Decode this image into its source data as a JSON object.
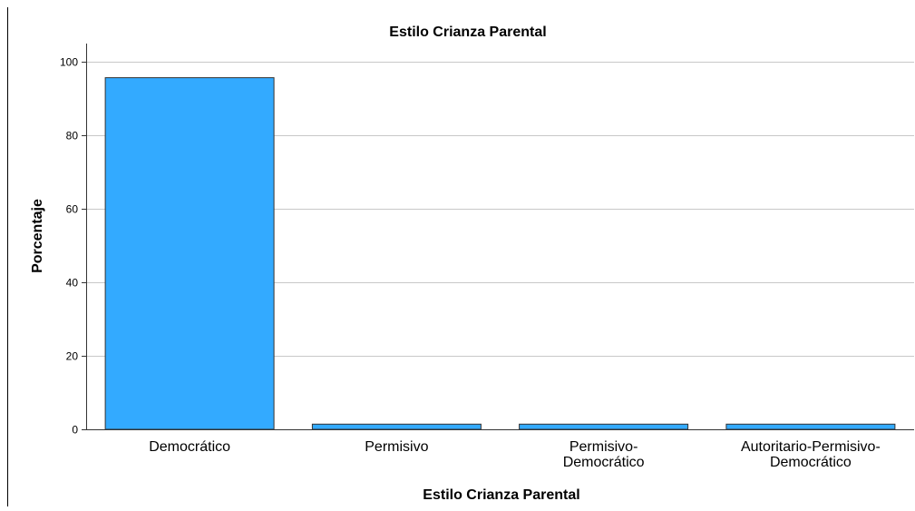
{
  "chart_data": {
    "type": "bar",
    "title": "Estilo Crianza Parental",
    "xlabel": "Estilo Crianza Parental",
    "ylabel": "Porcentaje",
    "categories": [
      [
        "Democrático"
      ],
      [
        "Permisivo"
      ],
      [
        "Permisivo-",
        "Democrático"
      ],
      [
        "Autoritario-Permisivo-",
        "Democrático"
      ]
    ],
    "values": [
      95.7,
      1.4,
      1.4,
      1.4
    ],
    "ylim": [
      0,
      105
    ],
    "yticks": [
      0,
      20,
      40,
      60,
      80,
      100
    ],
    "grid": true,
    "colors": {
      "bar": "#33aaff",
      "bar_stroke": "#333333",
      "grid": "#c8c8c8",
      "axis": "#333333"
    }
  }
}
